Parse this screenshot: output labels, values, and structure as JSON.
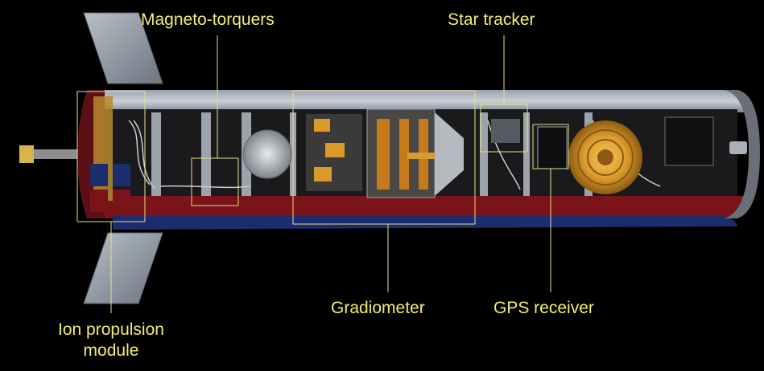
{
  "labels": {
    "magneto_torquers": "Magneto-torquers",
    "star_tracker": "Star tracker",
    "gradiometer": "Gradiometer",
    "gps_receiver": "GPS receiver",
    "ion_propulsion_line1": "Ion propulsion",
    "ion_propulsion_line2": "module"
  },
  "colors": {
    "background": "#000000",
    "label": "#f3ee6e",
    "callout": "#e6e08a",
    "hull_red": "#7a1418",
    "panel_blue": "#1c2d6e",
    "gold": "#d99a2b"
  }
}
